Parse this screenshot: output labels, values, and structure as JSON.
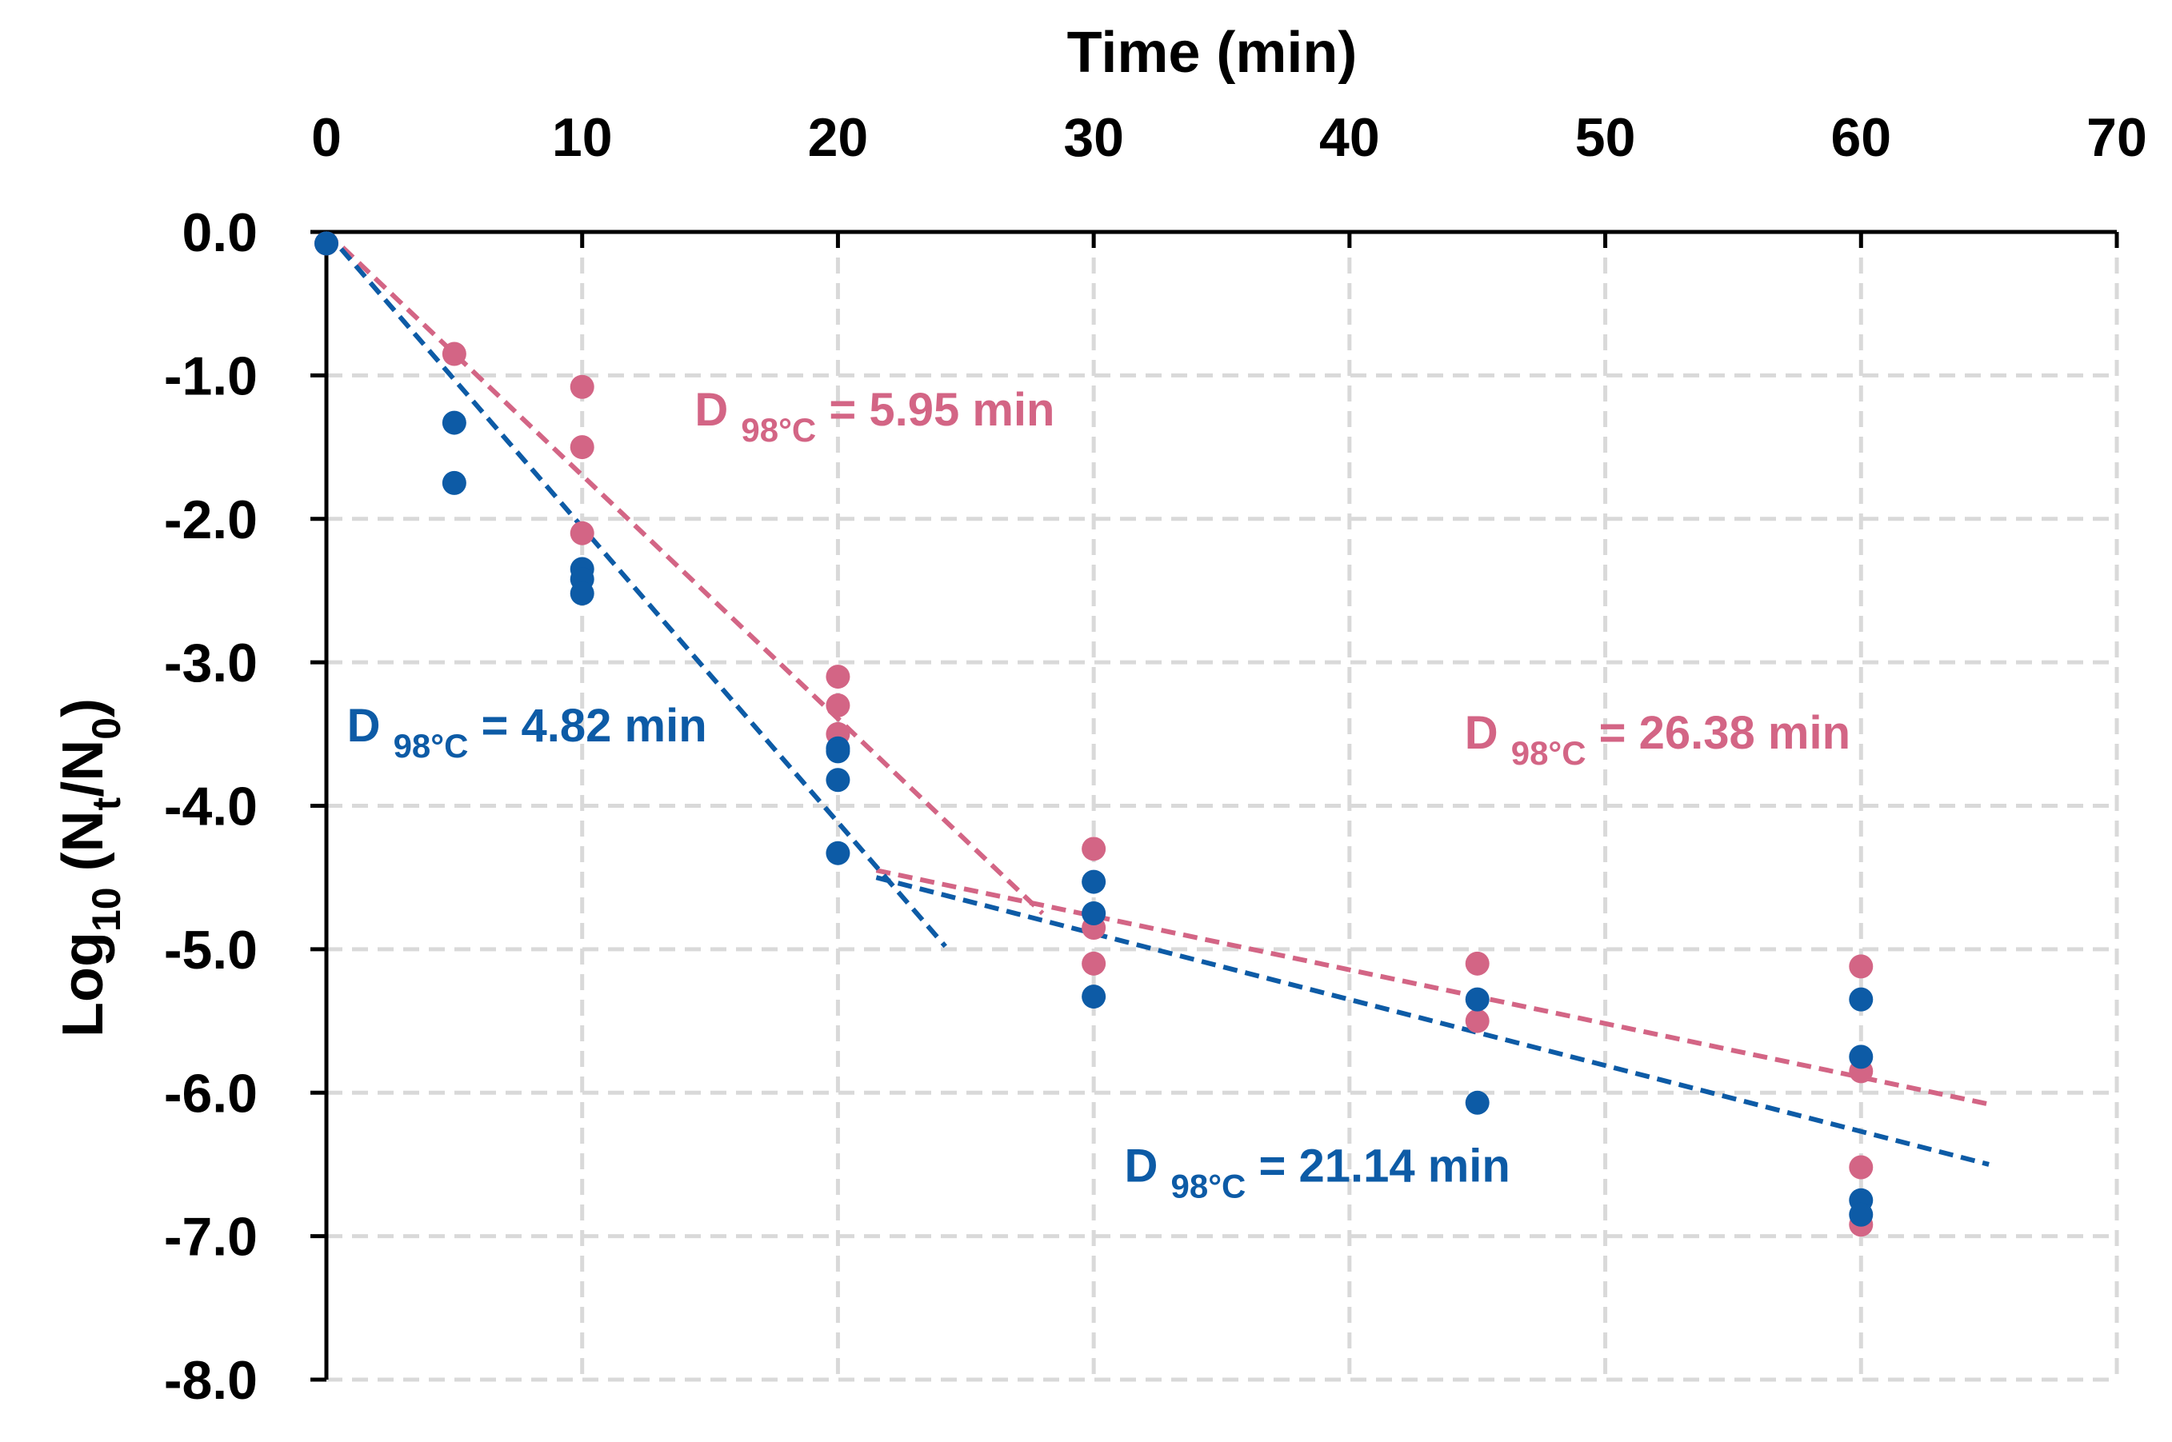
{
  "chart_data": {
    "type": "scatter",
    "title": "",
    "xlabel": "Time (min)",
    "ylabel": {
      "base": "Log",
      "sub_base": "10",
      "open": " (N",
      "sub_num": "t",
      "mid": "/N",
      "sub_den": "0",
      "close": ")"
    },
    "xlim": [
      0,
      70
    ],
    "ylim": [
      -8.0,
      0.0
    ],
    "x_ticks": [
      "0",
      "10",
      "20",
      "30",
      "40",
      "50",
      "60",
      "70"
    ],
    "x_tick_values": [
      0,
      10,
      20,
      30,
      40,
      50,
      60,
      70
    ],
    "y_ticks": [
      "0.0",
      "-1.0",
      "-2.0",
      "-3.0",
      "-4.0",
      "-5.0",
      "-6.0",
      "-7.0",
      "-8.0"
    ],
    "y_tick_values": [
      0,
      -1,
      -2,
      -3,
      -4,
      -5,
      -6,
      -7,
      -8
    ],
    "grid": true,
    "x_axis_position": "top",
    "colors": {
      "pink": "#D36585",
      "blue": "#0D5BA6",
      "grid": "#D9D9D9",
      "axis": "#000000"
    },
    "series": [
      {
        "name": "pink",
        "color": "#D36585",
        "points": [
          [
            0,
            -0.08
          ],
          [
            5,
            -0.85
          ],
          [
            10,
            -1.08
          ],
          [
            10,
            -1.5
          ],
          [
            10,
            -2.1
          ],
          [
            20,
            -3.1
          ],
          [
            20,
            -3.3
          ],
          [
            20,
            -3.5
          ],
          [
            30,
            -4.3
          ],
          [
            30,
            -4.85
          ],
          [
            30,
            -5.1
          ],
          [
            45,
            -5.1
          ],
          [
            45,
            -5.5
          ],
          [
            60,
            -5.12
          ],
          [
            60,
            -5.85
          ],
          [
            60,
            -6.52
          ],
          [
            60,
            -6.92
          ]
        ]
      },
      {
        "name": "blue",
        "color": "#0D5BA6",
        "points": [
          [
            0,
            -0.08
          ],
          [
            5,
            -1.33
          ],
          [
            5,
            -1.75
          ],
          [
            10,
            -2.35
          ],
          [
            10,
            -2.42
          ],
          [
            10,
            -2.52
          ],
          [
            20,
            -3.6
          ],
          [
            20,
            -3.62
          ],
          [
            20,
            -3.82
          ],
          [
            20,
            -4.33
          ],
          [
            30,
            -4.53
          ],
          [
            30,
            -4.75
          ],
          [
            30,
            -5.33
          ],
          [
            45,
            -5.35
          ],
          [
            45,
            -6.07
          ],
          [
            60,
            -5.35
          ],
          [
            60,
            -5.75
          ],
          [
            60,
            -6.75
          ],
          [
            60,
            -6.85
          ]
        ]
      }
    ],
    "fit_lines": [
      {
        "series": "pink",
        "x": [
          0,
          28
        ],
        "y": [
          0.0,
          -4.75
        ]
      },
      {
        "series": "pink",
        "x": [
          21.5,
          65
        ],
        "y": [
          -4.45,
          -6.08
        ]
      },
      {
        "series": "blue",
        "x": [
          0,
          24.2
        ],
        "y": [
          0.0,
          -4.98
        ]
      },
      {
        "series": "blue",
        "x": [
          21.5,
          65
        ],
        "y": [
          -4.5,
          -6.5
        ]
      }
    ],
    "annotations": [
      {
        "series": "pink",
        "prefix": "D ",
        "subscript": "98°C",
        "suffix": " = 5.95 min",
        "x": 14.4,
        "y": -1.35
      },
      {
        "series": "blue",
        "prefix": "D ",
        "subscript": "98°C",
        "suffix": " = 4.82 min",
        "x": 0.8,
        "y": -3.55
      },
      {
        "series": "pink",
        "prefix": "D ",
        "subscript": "98°C",
        "suffix": " = 26.38 min",
        "x": 44.5,
        "y": -3.6
      },
      {
        "series": "blue",
        "prefix": "D ",
        "subscript": "98°C",
        "suffix": " = 21.14 min",
        "x": 31.2,
        "y": -6.62
      }
    ]
  }
}
